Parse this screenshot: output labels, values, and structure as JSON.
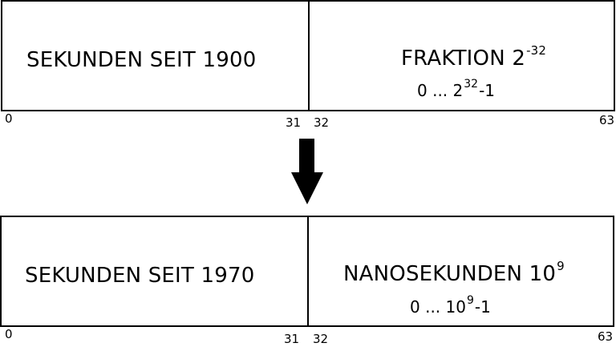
{
  "top": {
    "left_label": "SEKUNDEN SEIT 1900",
    "right_label_base": "FRAKTION 2",
    "right_label_exp": "-32",
    "range_prefix": "0 ... 2",
    "range_exp": "32",
    "range_suffix": "-1",
    "bit_0": "0",
    "bit_31": "31",
    "bit_32": "32",
    "bit_63": "63"
  },
  "bottom": {
    "left_label": "SEKUNDEN SEIT 1970",
    "right_label_base": "NANOSEKUNDEN 10",
    "right_label_exp": "9",
    "range_prefix": "0 ... 10",
    "range_exp": "9",
    "range_suffix": "-1",
    "bit_0": "0",
    "bit_31": "31",
    "bit_32": "32",
    "bit_63": "63"
  },
  "arrow_icon": "down-arrow-icon",
  "colors": {
    "stroke": "#000000",
    "background": "#ffffff"
  }
}
